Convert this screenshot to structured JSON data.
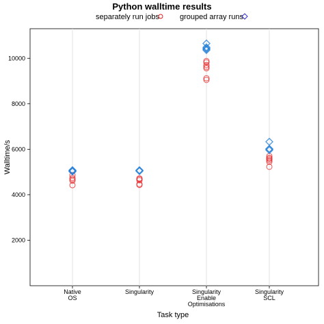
{
  "chart_data": {
    "type": "scatter",
    "title": "Python walltime results",
    "xlabel": "Task type",
    "ylabel": "Walltime/s",
    "ylim": [
      0,
      11300
    ],
    "yticks": [
      2000,
      4000,
      6000,
      8000,
      10000
    ],
    "grid": "vertical",
    "legend_position": "top",
    "categories": [
      [
        "Native",
        "OS"
      ],
      [
        "Singularity"
      ],
      [
        "Singularity",
        "Enable",
        "Optimisations"
      ],
      [
        "Singularity",
        "SCL"
      ]
    ],
    "series": [
      {
        "name": "separately run jobs",
        "marker": "circle",
        "color": "#e41a1c",
        "points": [
          [
            0,
            4420
          ],
          [
            0,
            4620
          ],
          [
            0,
            4680
          ],
          [
            0,
            4740
          ],
          [
            0,
            4860
          ],
          [
            1,
            4430
          ],
          [
            1,
            4470
          ],
          [
            1,
            4640
          ],
          [
            1,
            4690
          ],
          [
            1,
            4720
          ],
          [
            2,
            9050
          ],
          [
            2,
            9120
          ],
          [
            2,
            9560
          ],
          [
            2,
            9620
          ],
          [
            2,
            9700
          ],
          [
            2,
            9820
          ],
          [
            2,
            9880
          ],
          [
            3,
            5230
          ],
          [
            3,
            5450
          ],
          [
            3,
            5520
          ],
          [
            3,
            5580
          ],
          [
            3,
            5620
          ],
          [
            3,
            5700
          ]
        ]
      },
      {
        "name": "grouped array runs",
        "marker": "diamond",
        "color": "#1f7ed6",
        "points": [
          [
            0,
            5020
          ],
          [
            0,
            5040
          ],
          [
            0,
            5060
          ],
          [
            0,
            5080
          ],
          [
            1,
            5040
          ],
          [
            1,
            5060
          ],
          [
            1,
            5080
          ],
          [
            2,
            10360
          ],
          [
            2,
            10400
          ],
          [
            2,
            10440
          ],
          [
            2,
            10480
          ],
          [
            2,
            10650
          ],
          [
            3,
            5960
          ],
          [
            3,
            6000
          ],
          [
            3,
            6020
          ],
          [
            3,
            6330
          ]
        ]
      }
    ],
    "legend_marker_colors": {
      "separately run jobs": "#e41a1c",
      "grouped array runs": "#3333cc"
    }
  }
}
